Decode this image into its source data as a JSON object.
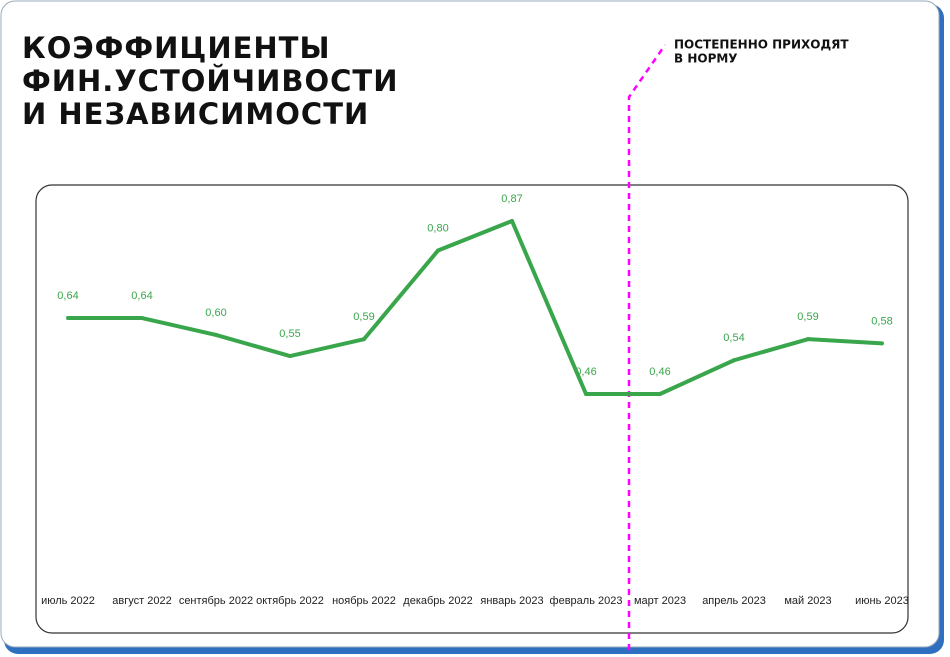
{
  "chart_data": {
    "type": "line",
    "title": [
      "КОЭФФИЦИЕНТЫ",
      "ФИН.УСТОЙЧИВОСТИ",
      "И НЕЗАВИСИМОСТИ"
    ],
    "annotation": [
      "ПОСТЕПЕННО ПРИХОДЯТ",
      "В НОРМУ"
    ],
    "categories": [
      "июль 2022",
      "август 2022",
      "сентябрь 2022",
      "октябрь 2022",
      "ноябрь 2022",
      "декабрь 2022",
      "январь 2023",
      "февраль 2023",
      "март 2023",
      "апрель 2023",
      "май 2023",
      "июнь 2023"
    ],
    "values": [
      0.64,
      0.64,
      0.6,
      0.55,
      0.59,
      0.8,
      0.87,
      0.46,
      0.46,
      0.54,
      0.59,
      0.58
    ],
    "value_labels": [
      "0,64",
      "0,64",
      "0,60",
      "0,55",
      "0,59",
      "0,80",
      "0,87",
      "0,46",
      "0,46",
      "0,54",
      "0,59",
      "0,58"
    ],
    "color": "#3aa64c"
  }
}
